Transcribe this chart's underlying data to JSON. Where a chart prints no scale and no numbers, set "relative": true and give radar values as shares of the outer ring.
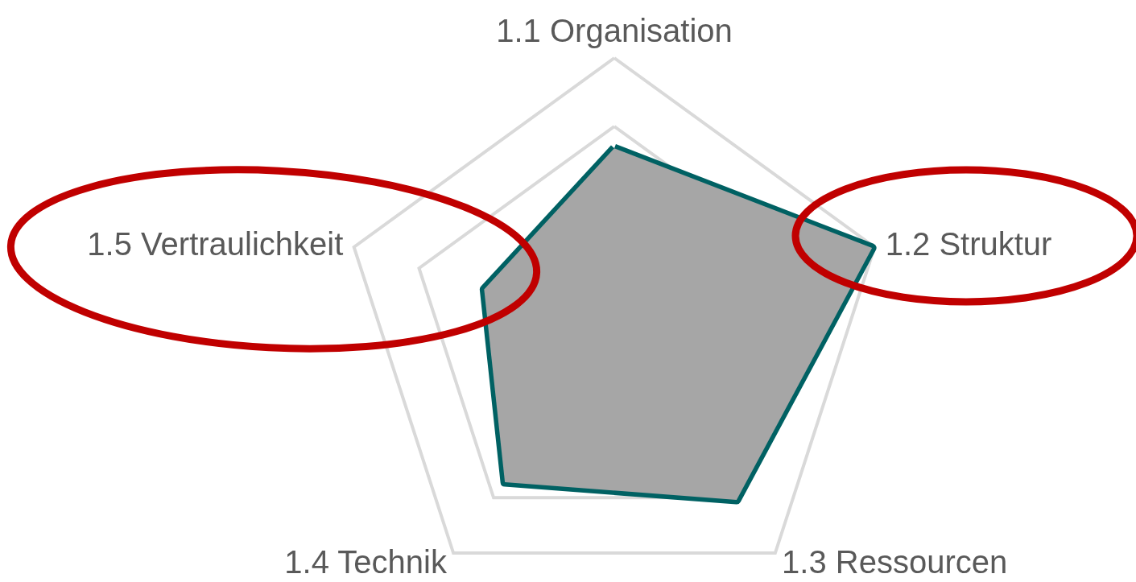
{
  "chart_data": {
    "type": "radar",
    "relative": true,
    "categories": [
      "1.1 Organisation",
      "1.2 Struktur",
      "1.3 Ressourcen",
      "1.4 Technik",
      "1.5 Vertraulichkeit"
    ],
    "series": [
      {
        "color": "#006163",
        "values": [
          0.67,
          0.99,
          0.76,
          0.68,
          0.5
        ]
      }
    ]
  }
}
